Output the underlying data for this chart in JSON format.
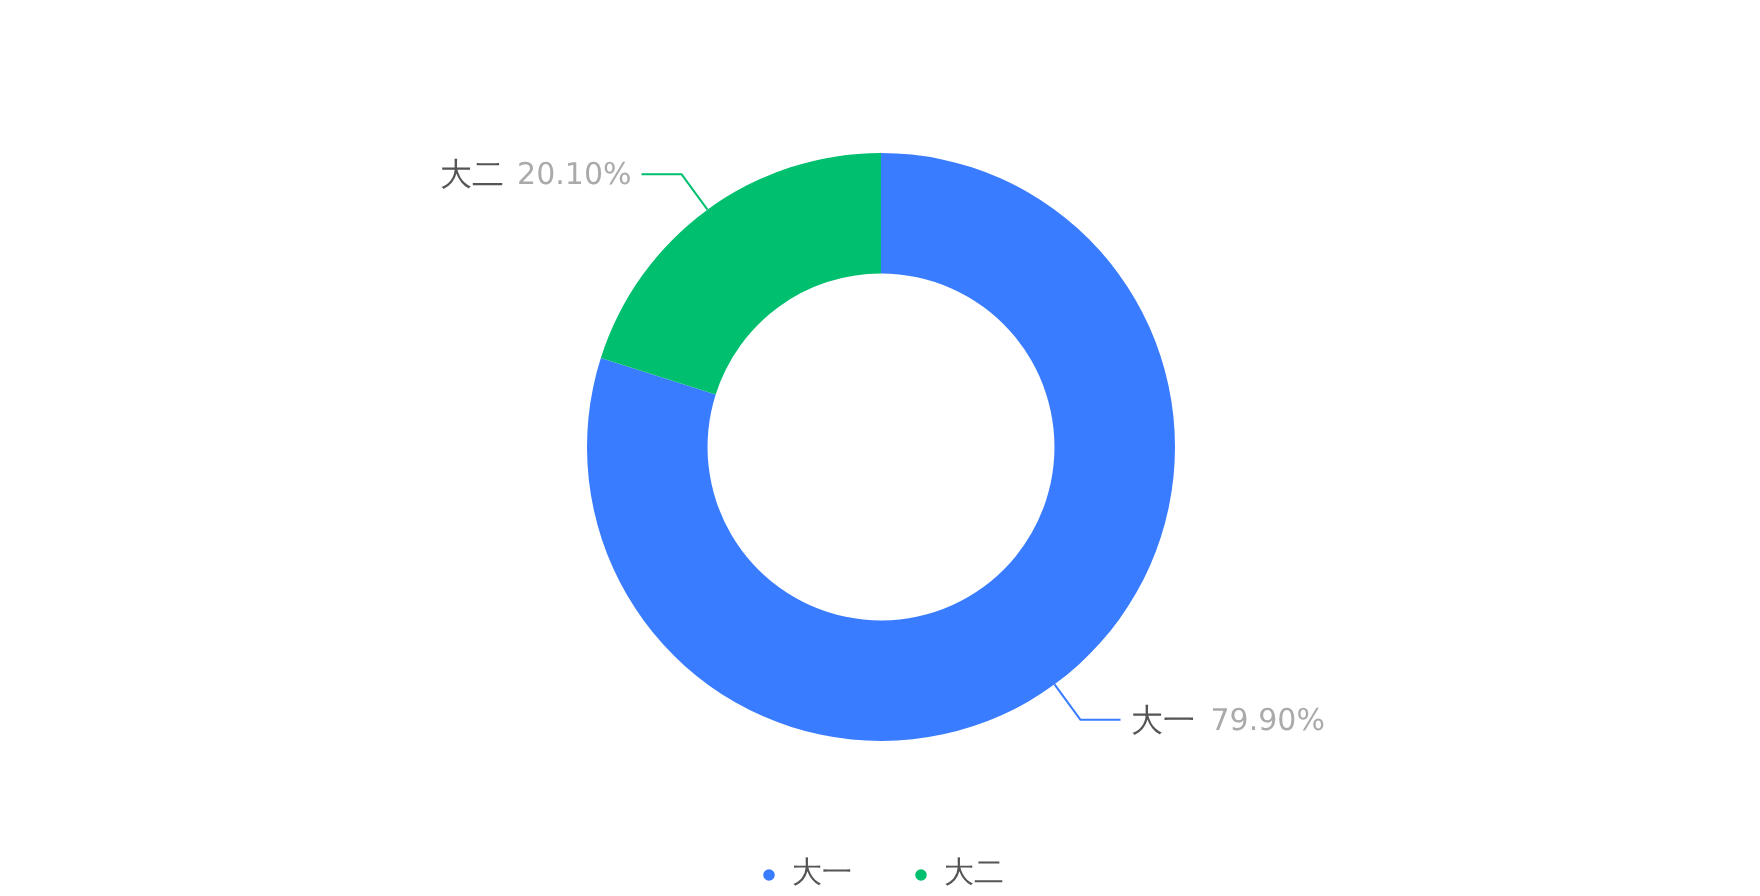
{
  "chart_data": {
    "type": "donut",
    "categories": [
      "大一",
      "大二"
    ],
    "values": [
      79.9,
      20.1
    ],
    "colors": [
      "#3a7cff",
      "#00c06f"
    ],
    "value_labels": [
      "79.90%",
      "20.10%"
    ],
    "legend": "bottom"
  }
}
